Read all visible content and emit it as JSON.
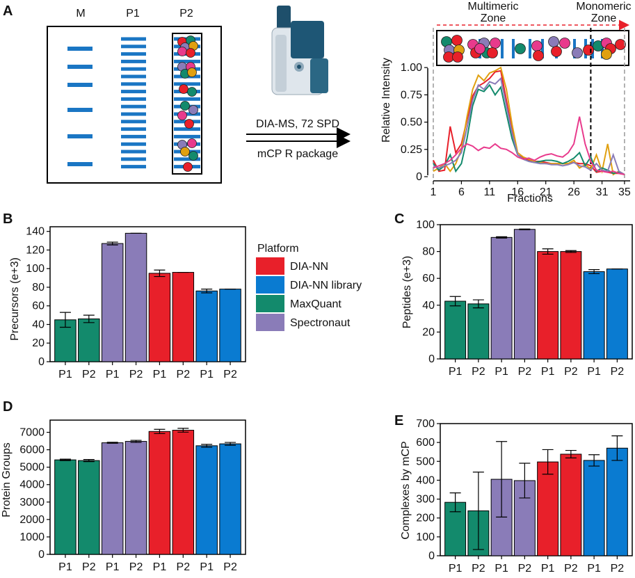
{
  "colors": {
    "MaxQuant": "#138a6c",
    "Spectronaut": "#8a7cb8",
    "DIA-NN": "#e8202a",
    "DIA-NN library": "#0a7bd1",
    "band": "#1a76c4",
    "pink": "#e83a8c",
    "orange": "#e0a010"
  },
  "panelA": {
    "label": "A",
    "gel_lanes": [
      "M",
      "P1",
      "P2"
    ],
    "arrow_top_text": "DIA-MS, 72 SPD",
    "arrow_bottom_text": "mCP R package",
    "zone_multimeric": "Multimeric Zone",
    "zone_monomeric": "Monomeric Zone"
  },
  "legend": {
    "title": "Platform",
    "items": [
      "DIA-NN",
      "DIA-NN library",
      "MaxQuant",
      "Spectronaut"
    ]
  },
  "chart_data": [
    {
      "id": "A",
      "type": "line",
      "title": "",
      "xlabel": "Fractions",
      "ylabel": "Relative Intensity",
      "xlim": [
        1,
        36
      ],
      "ylim": [
        0,
        1.02
      ],
      "xticks": [
        1,
        6,
        11,
        16,
        21,
        26,
        31,
        35
      ],
      "yticks": [
        0,
        0.25,
        0.5,
        0.75,
        1.0
      ],
      "ytick_labels": [
        "0",
        "0.25",
        "0.50",
        "0.75",
        "1.00"
      ],
      "dashed_vlines": [
        1,
        29,
        35
      ],
      "x": [
        1,
        2,
        3,
        4,
        5,
        6,
        7,
        8,
        9,
        10,
        11,
        12,
        13,
        14,
        15,
        16,
        17,
        18,
        19,
        20,
        21,
        22,
        23,
        24,
        25,
        26,
        27,
        28,
        29,
        30,
        31,
        32,
        33,
        34,
        35
      ],
      "series": [
        {
          "name": "red",
          "color": "#e8202a",
          "values": [
            0.15,
            0.05,
            0.06,
            0.46,
            0.22,
            0.3,
            0.52,
            0.74,
            0.83,
            0.86,
            0.9,
            0.96,
            0.97,
            0.7,
            0.42,
            0.2,
            0.17,
            0.15,
            0.14,
            0.14,
            0.13,
            0.12,
            0.12,
            0.12,
            0.12,
            0.13,
            0.12,
            0.12,
            0.1,
            0.04,
            0.05,
            0.04,
            0.03,
            0.03,
            0.02
          ]
        },
        {
          "name": "orange",
          "color": "#e0a010",
          "values": [
            0.05,
            0.08,
            0.12,
            0.05,
            0.12,
            0.25,
            0.55,
            0.8,
            0.93,
            0.88,
            0.95,
            0.97,
            1.0,
            0.8,
            0.48,
            0.22,
            0.18,
            0.16,
            0.14,
            0.13,
            0.12,
            0.12,
            0.12,
            0.12,
            0.12,
            0.15,
            0.08,
            0.11,
            0.07,
            0.2,
            0.05,
            0.3,
            0.02,
            0.05,
            0.02
          ]
        },
        {
          "name": "green",
          "color": "#138a6c",
          "values": [
            0.12,
            0.06,
            0.1,
            0.2,
            0.05,
            0.12,
            0.35,
            0.65,
            0.8,
            0.78,
            0.84,
            0.75,
            0.82,
            0.58,
            0.35,
            0.2,
            0.16,
            0.14,
            0.13,
            0.14,
            0.15,
            0.15,
            0.14,
            0.12,
            0.14,
            0.17,
            0.22,
            0.1,
            0.18,
            0.05,
            0.08,
            0.06,
            0.03,
            0.04,
            0.02
          ]
        },
        {
          "name": "purple",
          "color": "#8a7cb8",
          "values": [
            0.1,
            0.08,
            0.1,
            0.12,
            0.15,
            0.22,
            0.45,
            0.7,
            0.84,
            0.8,
            0.87,
            0.85,
            0.9,
            0.65,
            0.4,
            0.2,
            0.16,
            0.14,
            0.13,
            0.12,
            0.12,
            0.11,
            0.11,
            0.1,
            0.11,
            0.13,
            0.1,
            0.09,
            0.06,
            0.12,
            0.06,
            0.05,
            0.2,
            0.05,
            0.02
          ]
        },
        {
          "name": "pink",
          "color": "#e83a8c",
          "values": [
            0.08,
            0.1,
            0.12,
            0.15,
            0.2,
            0.26,
            0.3,
            0.28,
            0.24,
            0.27,
            0.26,
            0.3,
            0.26,
            0.25,
            0.22,
            0.18,
            0.16,
            0.17,
            0.15,
            0.18,
            0.2,
            0.21,
            0.19,
            0.18,
            0.22,
            0.3,
            0.55,
            0.3,
            0.14,
            0.06,
            0.05,
            0.04,
            0.05,
            0.03,
            0.02
          ]
        }
      ]
    },
    {
      "id": "B",
      "type": "bar",
      "categories": [
        "P1",
        "P2",
        "P1",
        "P2",
        "P1",
        "P2",
        "P1",
        "P2"
      ],
      "platforms": [
        "MaxQuant",
        "MaxQuant",
        "Spectronaut",
        "Spectronaut",
        "DIA-NN",
        "DIA-NN",
        "DIA-NN library",
        "DIA-NN library"
      ],
      "values": [
        45,
        46,
        127,
        138,
        95,
        96,
        76,
        78
      ],
      "errors": [
        8,
        4,
        1.5,
        0,
        3.5,
        0,
        2,
        0
      ],
      "ylabel": "Precursors (e+3)",
      "xlabel": "",
      "ylim": [
        0,
        145
      ],
      "yticks": [
        0,
        20,
        40,
        60,
        80,
        100,
        120,
        140
      ]
    },
    {
      "id": "C",
      "type": "bar",
      "categories": [
        "P1",
        "P2",
        "P1",
        "P2",
        "P1",
        "P2",
        "P1",
        "P2"
      ],
      "platforms": [
        "MaxQuant",
        "MaxQuant",
        "Spectronaut",
        "Spectronaut",
        "DIA-NN",
        "DIA-NN",
        "DIA-NN library",
        "DIA-NN library"
      ],
      "values": [
        43,
        41,
        90.5,
        96.5,
        80,
        80,
        65,
        67
      ],
      "errors": [
        3.5,
        3,
        0.5,
        0.3,
        2,
        0.7,
        1.5,
        0
      ],
      "ylabel": "Peptides (e+3)",
      "xlabel": "",
      "ylim": [
        0,
        100
      ],
      "yticks": [
        0,
        20,
        40,
        60,
        80,
        100
      ]
    },
    {
      "id": "D",
      "type": "bar",
      "categories": [
        "P1",
        "P2",
        "P1",
        "P2",
        "P1",
        "P2",
        "P1",
        "P2"
      ],
      "platforms": [
        "MaxQuant",
        "MaxQuant",
        "Spectronaut",
        "Spectronaut",
        "DIA-NN",
        "DIA-NN",
        "DIA-NN library",
        "DIA-NN library"
      ],
      "values": [
        5420,
        5380,
        6400,
        6480,
        7050,
        7120,
        6230,
        6340
      ],
      "errors": [
        40,
        60,
        30,
        60,
        120,
        110,
        80,
        80
      ],
      "ylabel": "Protein Groups",
      "xlabel": "",
      "ylim": [
        0,
        7700
      ],
      "yticks": [
        0,
        1000,
        2000,
        3000,
        4000,
        5000,
        6000,
        7000
      ]
    },
    {
      "id": "E",
      "type": "bar",
      "categories": [
        "P1",
        "P2",
        "P1",
        "P2",
        "P1",
        "P2",
        "P1",
        "P2"
      ],
      "platforms": [
        "MaxQuant",
        "MaxQuant",
        "Spectronaut",
        "Spectronaut",
        "DIA-NN",
        "DIA-NN",
        "DIA-NN library",
        "DIA-NN library"
      ],
      "values": [
        283,
        238,
        405,
        398,
        497,
        538,
        505,
        570
      ],
      "errors": [
        50,
        205,
        200,
        92,
        65,
        20,
        30,
        65
      ],
      "ylabel": "Complexes by mCP",
      "xlabel": "",
      "ylim": [
        0,
        700
      ],
      "yticks": [
        0,
        100,
        200,
        300,
        400,
        500,
        600,
        700
      ]
    }
  ]
}
